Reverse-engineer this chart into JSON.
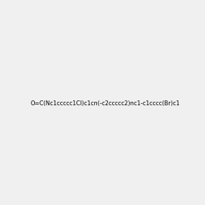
{
  "smiles": "O=C(Nc1ccccc1Cl)c1cn(-c2ccccc2)nc1-c1cccc(Br)c1",
  "title": "",
  "background_color": "#f0f0f0",
  "bond_color": "#000000",
  "n_color": "#0000ff",
  "o_color": "#ff0000",
  "cl_color": "#00aa00",
  "br_color": "#cc7722",
  "h_color": "#008080",
  "fig_width": 3.0,
  "fig_height": 3.0,
  "dpi": 100
}
